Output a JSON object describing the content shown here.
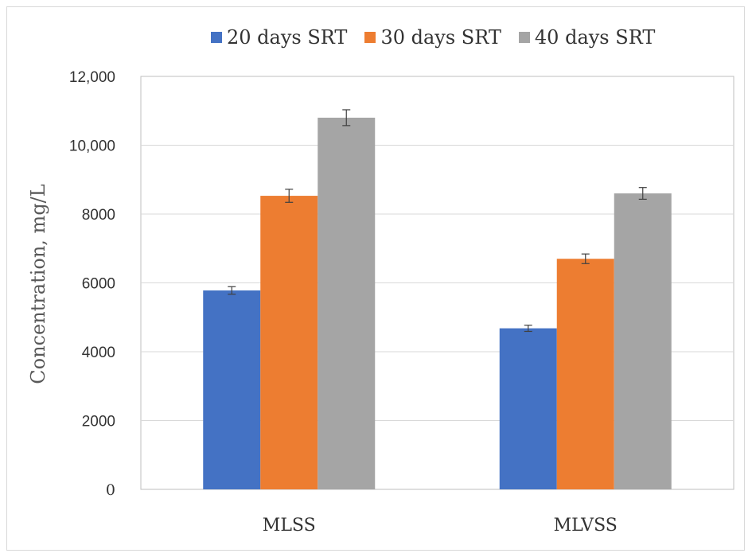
{
  "chart_data": {
    "type": "bar",
    "categories": [
      "MLSS",
      "MLVSS"
    ],
    "series": [
      {
        "name": "20 days SRT",
        "color": "#4472c4",
        "values": [
          5780,
          4680
        ],
        "errors": [
          110,
          90
        ]
      },
      {
        "name": "30 days SRT",
        "color": "#ed7d31",
        "values": [
          8530,
          6700
        ],
        "errors": [
          190,
          140
        ]
      },
      {
        "name": "40 days SRT",
        "color": "#a5a5a5",
        "values": [
          10800,
          8600
        ],
        "errors": [
          230,
          170
        ]
      }
    ],
    "ylabel": "Concentration, mg/L",
    "xlabel": "",
    "ylim": [
      0,
      12000
    ],
    "yticks": [
      {
        "value": 0,
        "label": "0"
      },
      {
        "value": 2000,
        "label": "2000"
      },
      {
        "value": 4000,
        "label": "4000"
      },
      {
        "value": 6000,
        "label": "6000"
      },
      {
        "value": 8000,
        "label": "8000"
      },
      {
        "value": 10000,
        "label": "10,000"
      },
      {
        "value": 12000,
        "label": "12,000"
      }
    ],
    "grid": true,
    "legend_position": "top"
  }
}
